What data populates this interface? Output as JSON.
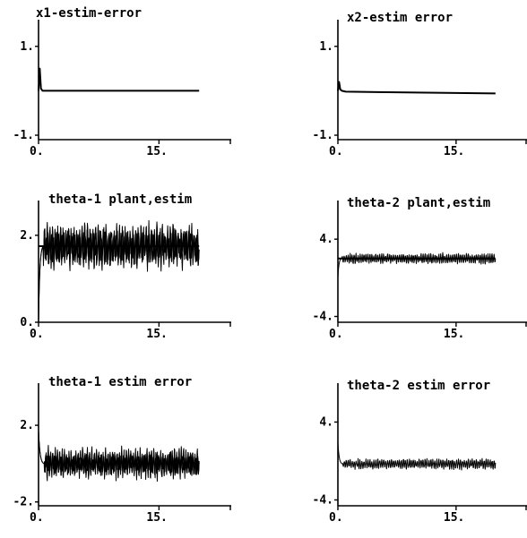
{
  "chart_data": [
    {
      "type": "line",
      "title": "x1-estim-error",
      "xlim": [
        0,
        24
      ],
      "ylim": [
        -1.1,
        1.6
      ],
      "x_ticks": [
        {
          "value": 0,
          "label": "0."
        },
        {
          "value": 15,
          "label": "15."
        }
      ],
      "y_ticks": [
        {
          "value": 1,
          "label": "1."
        },
        {
          "value": -1,
          "label": "-1."
        }
      ],
      "series": [
        {
          "x": [
            0,
            0.15,
            0.3,
            0.5,
            1,
            5,
            10,
            15,
            20
          ],
          "y": [
            0,
            0.5,
            0.05,
            0,
            0,
            0,
            0,
            0,
            0
          ]
        }
      ]
    },
    {
      "type": "line",
      "title": "x2-estim error",
      "xlim": [
        0,
        24
      ],
      "ylim": [
        -1.1,
        1.6
      ],
      "x_ticks": [
        {
          "value": 0,
          "label": "0."
        },
        {
          "value": 15,
          "label": "15."
        }
      ],
      "y_ticks": [
        {
          "value": 1,
          "label": "1."
        },
        {
          "value": -1,
          "label": "-1."
        }
      ],
      "series": [
        {
          "x": [
            0,
            0.15,
            0.3,
            0.5,
            1,
            5,
            10,
            15,
            20
          ],
          "y": [
            0,
            0.2,
            0.03,
            0,
            -0.02,
            -0.03,
            -0.04,
            -0.05,
            -0.06
          ]
        }
      ]
    },
    {
      "type": "line",
      "title": "theta-1 plant,estim",
      "xlim": [
        0,
        24
      ],
      "ylim": [
        0,
        2.8
      ],
      "x_ticks": [
        {
          "value": 0,
          "label": "0."
        },
        {
          "value": 15,
          "label": "15."
        }
      ],
      "y_ticks": [
        {
          "value": 2,
          "label": "2."
        },
        {
          "value": 0,
          "label": "0."
        }
      ],
      "series": [
        {
          "kind": "step-oscillation",
          "start": 0,
          "end": 20,
          "step_end": 0.6,
          "level": 1.75,
          "amplitude": 0.5,
          "oscillating": true,
          "cycles": 60
        },
        {
          "kind": "step-oscillation",
          "start": 0,
          "end": 20,
          "step_end": 0.6,
          "level": 1.75,
          "amplitude": 0.35,
          "oscillating": true,
          "cycles": 90
        },
        {
          "kind": "constant",
          "start": 0,
          "end": 20,
          "level": 1.75
        }
      ]
    },
    {
      "type": "line",
      "title": "theta-2 plant,estim",
      "xlim": [
        0,
        24
      ],
      "ylim": [
        -4.6,
        8
      ],
      "x_ticks": [
        {
          "value": 0,
          "label": "0."
        },
        {
          "value": 15,
          "label": "15."
        }
      ],
      "y_ticks": [
        {
          "value": 4,
          "label": "4."
        },
        {
          "value": -4,
          "label": "-4."
        }
      ],
      "series": [
        {
          "kind": "step-oscillation",
          "start": 0,
          "end": 20,
          "step_end": 0.5,
          "level": 2.0,
          "amplitude": 0.5,
          "oscillating": true,
          "cycles": 80
        },
        {
          "kind": "constant",
          "start": 0,
          "end": 20,
          "level": 2.0
        }
      ]
    },
    {
      "type": "line",
      "title": "theta-1 estim error",
      "xlim": [
        0,
        24
      ],
      "ylim": [
        -2.2,
        4.2
      ],
      "x_ticks": [
        {
          "value": 0,
          "label": "0."
        },
        {
          "value": 15,
          "label": "15."
        }
      ],
      "y_ticks": [
        {
          "value": 2,
          "label": "2."
        },
        {
          "value": -2,
          "label": "-2."
        }
      ],
      "series": [
        {
          "kind": "decay-oscillation",
          "start": 0,
          "end": 20,
          "initial": 1.75,
          "decay_end": 0.7,
          "level": 0,
          "amplitude": 0.75,
          "oscillating": true,
          "cycles": 70
        },
        {
          "kind": "decay-oscillation",
          "start": 0,
          "end": 20,
          "initial": 1.75,
          "decay_end": 0.7,
          "level": 0,
          "amplitude": 0.5,
          "oscillating": true,
          "cycles": 95
        }
      ]
    },
    {
      "type": "line",
      "title": "theta-2 estim error",
      "xlim": [
        0,
        24
      ],
      "ylim": [
        -4.6,
        8
      ],
      "x_ticks": [
        {
          "value": 0,
          "label": "0."
        },
        {
          "value": 15,
          "label": "15."
        }
      ],
      "y_ticks": [
        {
          "value": 4,
          "label": "4."
        },
        {
          "value": -4,
          "label": "-4."
        }
      ],
      "series": [
        {
          "kind": "decay-oscillation",
          "start": 0,
          "end": 20,
          "initial": 2.0,
          "decay_end": 0.6,
          "level": -0.3,
          "amplitude": 0.5,
          "oscillating": true,
          "cycles": 80
        }
      ]
    }
  ]
}
